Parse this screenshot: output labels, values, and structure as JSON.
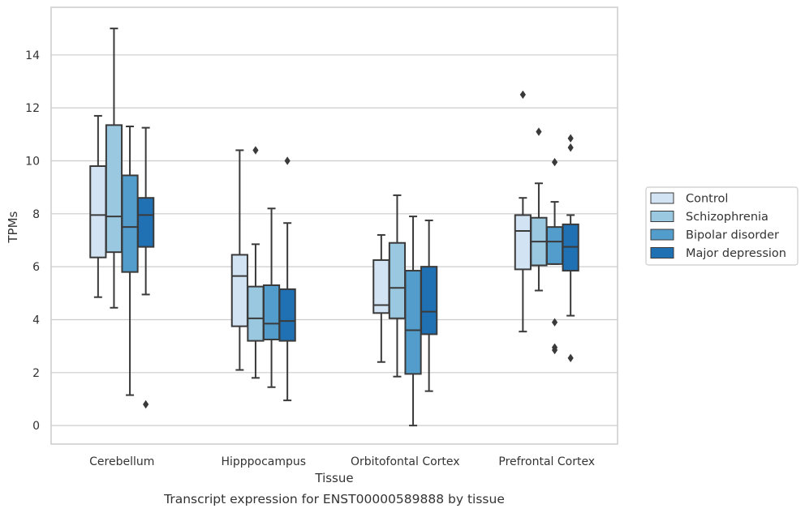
{
  "caption": "Transcript expression for ENST00000589888 by tissue",
  "colors": {
    "Control": "#d2e3f3",
    "Schizophrenia": "#9ac8e0",
    "Bipolar disorder": "#529dcc",
    "Major depression": "#2070b4",
    "edge": "#3a3a3a",
    "grid": "#cccccc",
    "frame": "#cccccc"
  },
  "chart_data": {
    "type": "box",
    "xlabel": "Tissue",
    "ylabel": "TPMs",
    "ylim": [
      -0.7,
      15.8
    ],
    "yticks": [
      0,
      2,
      4,
      6,
      8,
      10,
      12,
      14
    ],
    "grid": "horizontal",
    "legend_position": "right",
    "categories": [
      "Cerebellum",
      "Hipppocampus",
      "Orbitofontal Cortex",
      "Prefrontal Cortex"
    ],
    "series": [
      {
        "name": "Control",
        "boxes": [
          {
            "whisker_low": 4.85,
            "q1": 6.35,
            "median": 7.95,
            "q3": 9.8,
            "whisker_high": 11.7,
            "outliers": []
          },
          {
            "whisker_low": 2.1,
            "q1": 3.75,
            "median": 5.65,
            "q3": 6.45,
            "whisker_high": 10.4,
            "outliers": []
          },
          {
            "whisker_low": 2.4,
            "q1": 4.25,
            "median": 4.55,
            "q3": 6.25,
            "whisker_high": 7.2,
            "outliers": []
          },
          {
            "whisker_low": 3.55,
            "q1": 5.9,
            "median": 7.35,
            "q3": 7.95,
            "whisker_high": 8.6,
            "outliers": [
              12.5
            ]
          }
        ]
      },
      {
        "name": "Schizophrenia",
        "boxes": [
          {
            "whisker_low": 4.45,
            "q1": 6.55,
            "median": 7.9,
            "q3": 11.35,
            "whisker_high": 15.0,
            "outliers": []
          },
          {
            "whisker_low": 1.8,
            "q1": 3.2,
            "median": 4.05,
            "q3": 5.25,
            "whisker_high": 6.85,
            "outliers": [
              10.4
            ]
          },
          {
            "whisker_low": 1.85,
            "q1": 4.05,
            "median": 5.2,
            "q3": 6.9,
            "whisker_high": 8.7,
            "outliers": []
          },
          {
            "whisker_low": 5.1,
            "q1": 6.05,
            "median": 6.95,
            "q3": 7.85,
            "whisker_high": 9.15,
            "outliers": [
              11.1
            ]
          }
        ]
      },
      {
        "name": "Bipolar disorder",
        "boxes": [
          {
            "whisker_low": 1.15,
            "q1": 5.8,
            "median": 7.5,
            "q3": 9.45,
            "whisker_high": 11.3,
            "outliers": []
          },
          {
            "whisker_low": 1.45,
            "q1": 3.25,
            "median": 3.85,
            "q3": 5.3,
            "whisker_high": 8.2,
            "outliers": []
          },
          {
            "whisker_low": 0.0,
            "q1": 1.95,
            "median": 3.6,
            "q3": 5.85,
            "whisker_high": 7.9,
            "outliers": []
          },
          {
            "whisker_low": 6.1,
            "q1": 6.1,
            "median": 6.95,
            "q3": 7.5,
            "whisker_high": 8.45,
            "outliers": [
              9.95,
              3.9,
              2.95,
              2.85
            ]
          }
        ]
      },
      {
        "name": "Major depression",
        "boxes": [
          {
            "whisker_low": 4.95,
            "q1": 6.75,
            "median": 7.95,
            "q3": 8.6,
            "whisker_high": 11.25,
            "outliers": [
              0.8
            ]
          },
          {
            "whisker_low": 0.95,
            "q1": 3.2,
            "median": 3.95,
            "q3": 5.15,
            "whisker_high": 7.65,
            "outliers": [
              10.0
            ]
          },
          {
            "whisker_low": 1.3,
            "q1": 3.45,
            "median": 4.3,
            "q3": 6.0,
            "whisker_high": 7.75,
            "outliers": []
          },
          {
            "whisker_low": 4.15,
            "q1": 5.85,
            "median": 6.75,
            "q3": 7.6,
            "whisker_high": 7.95,
            "outliers": [
              10.85,
              10.5,
              2.55
            ]
          }
        ]
      }
    ]
  }
}
